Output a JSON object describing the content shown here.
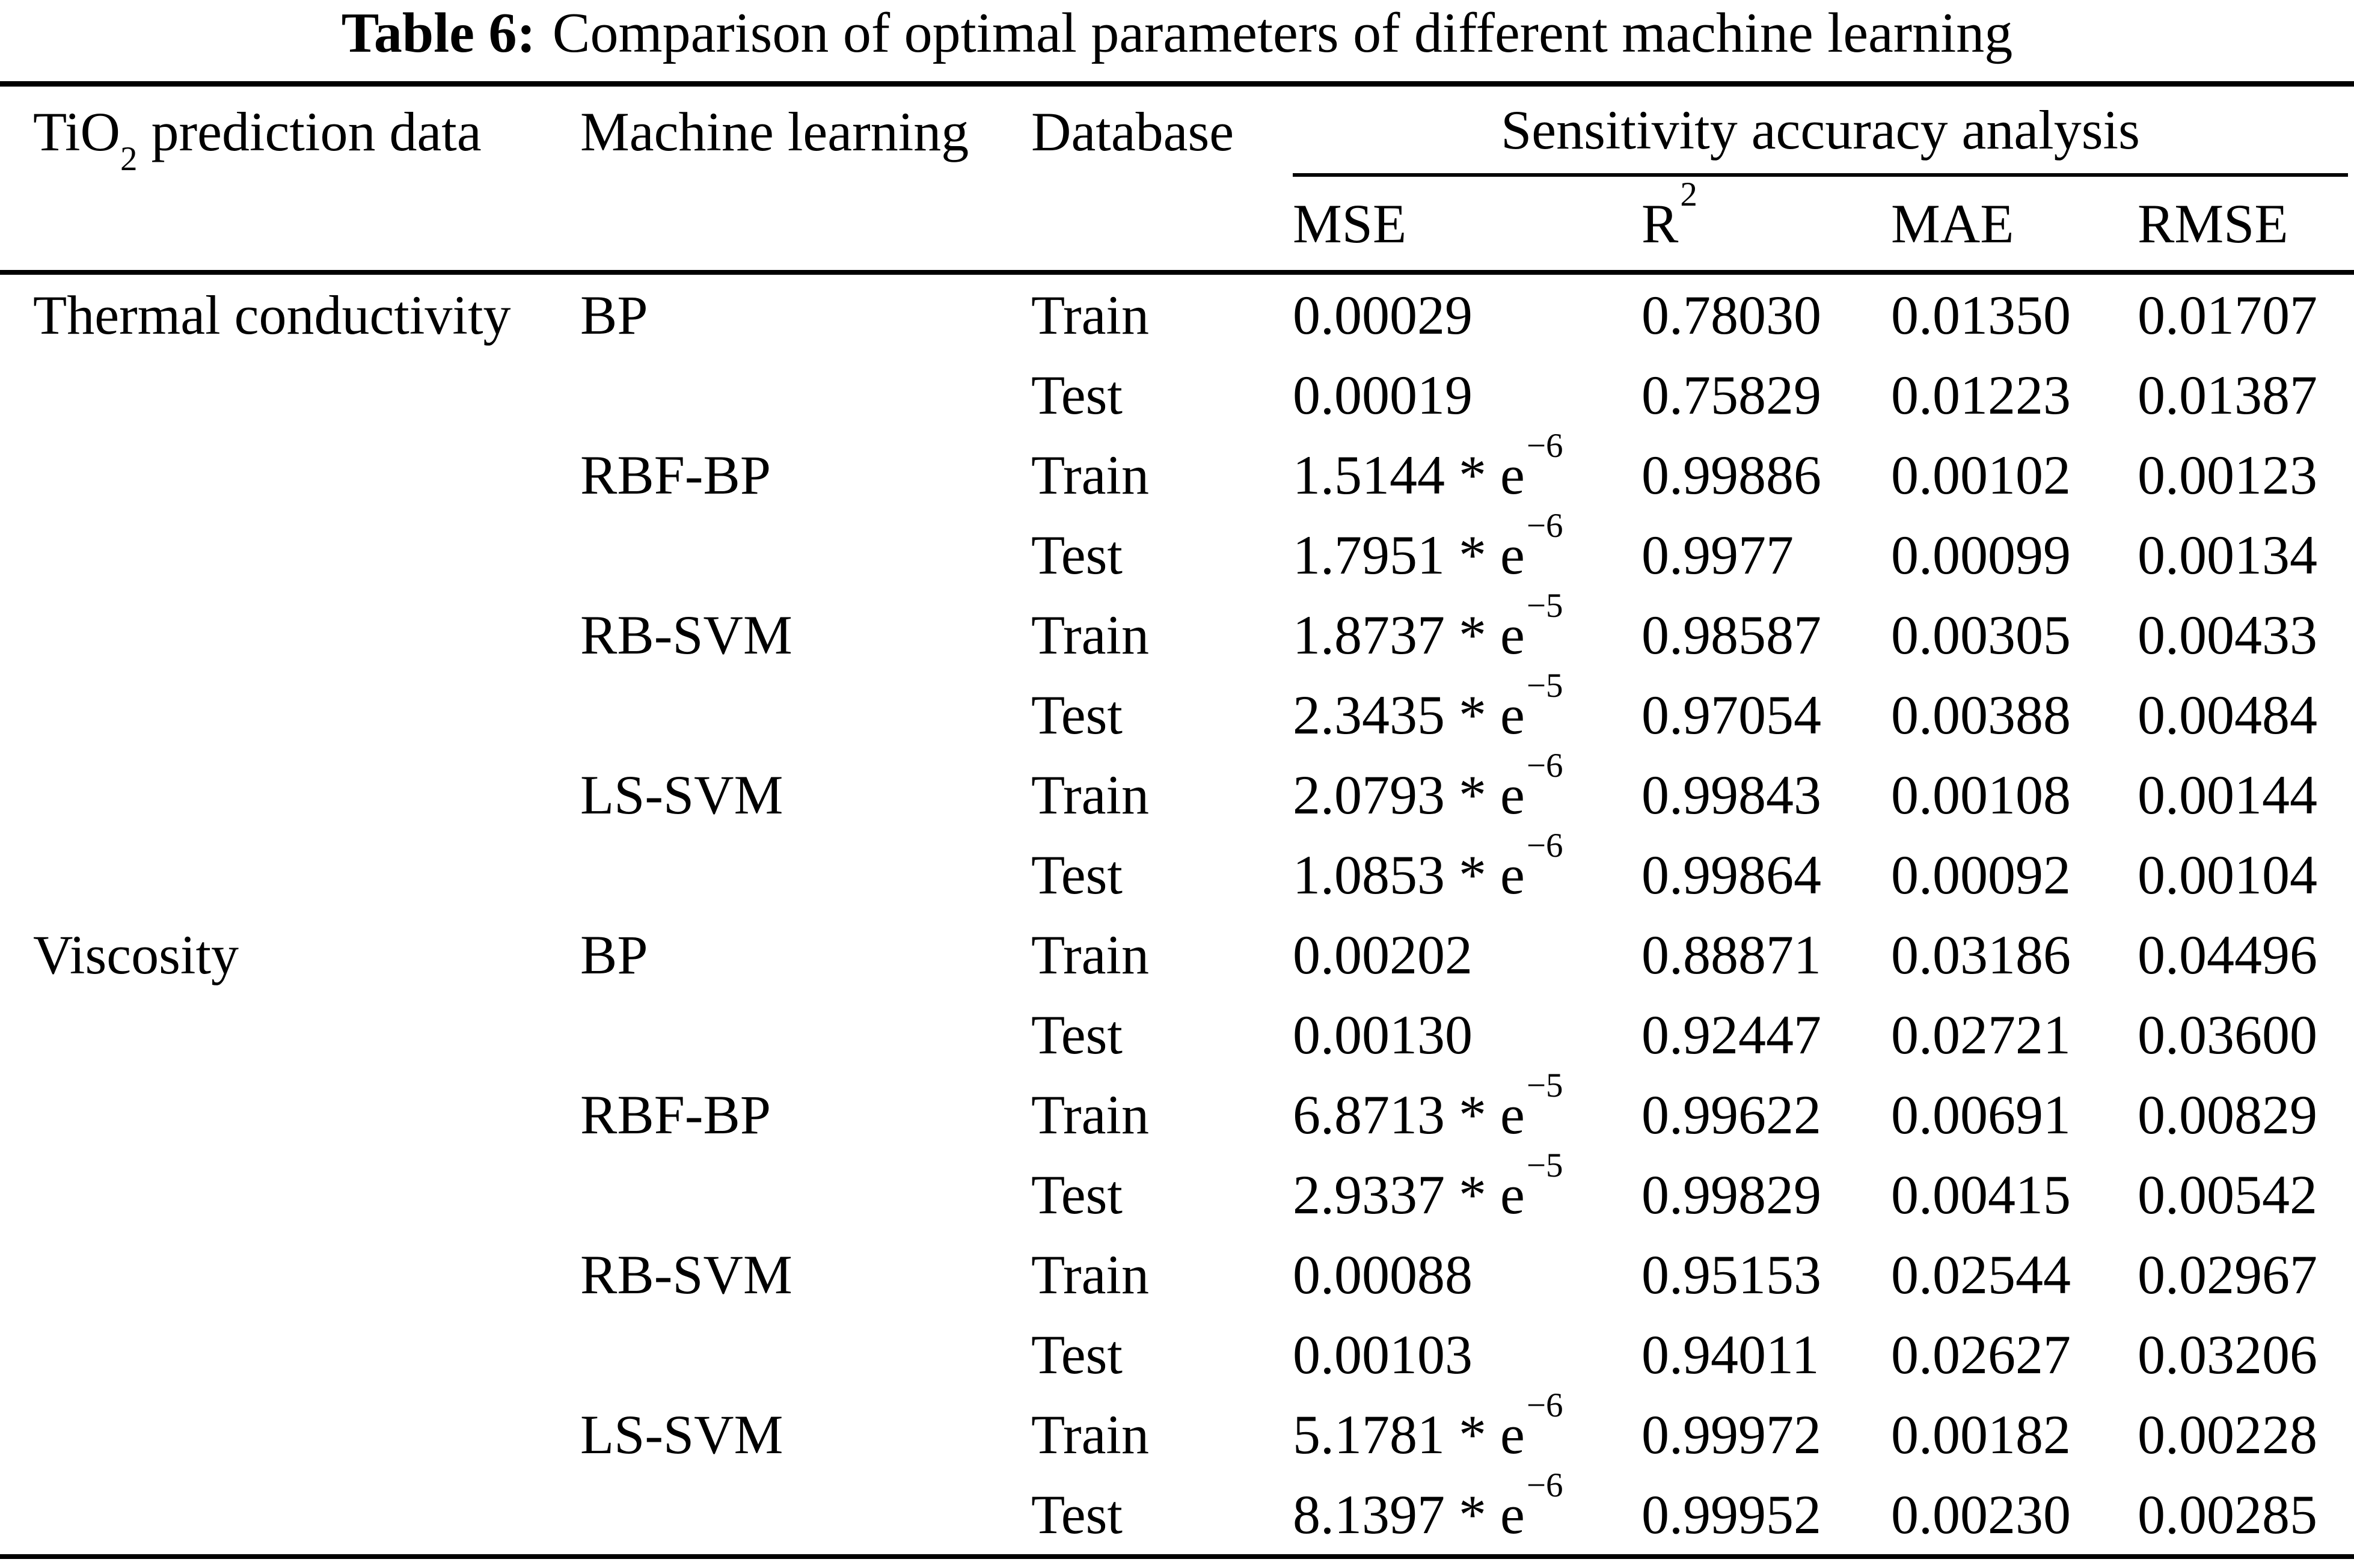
{
  "title": {
    "label": "Table 6:",
    "text": "Comparison of optimal parameters of different machine learning"
  },
  "header": {
    "col1_base": "TiO",
    "col1_sub": "2",
    "col1_rest": " prediction data",
    "col2": "Machine learning",
    "col3": "Database",
    "group": "Sensitivity accuracy analysis",
    "metrics": {
      "mse": "MSE",
      "r2_base": "R",
      "r2_sup": "2",
      "mae": "MAE",
      "rmse": "RMSE"
    }
  },
  "rows": [
    {
      "data": "Thermal conductivity",
      "model": "BP",
      "db": "Train",
      "mse": "0.00029",
      "mse_exp": "",
      "r2": "0.78030",
      "mae": "0.01350",
      "rmse": "0.01707"
    },
    {
      "data": "",
      "model": "",
      "db": "Test",
      "mse": "0.00019",
      "mse_exp": "",
      "r2": "0.75829",
      "mae": "0.01223",
      "rmse": "0.01387"
    },
    {
      "data": "",
      "model": "RBF-BP",
      "db": "Train",
      "mse": "1.5144 * e",
      "mse_exp": "−6",
      "r2": "0.99886",
      "mae": "0.00102",
      "rmse": "0.00123"
    },
    {
      "data": "",
      "model": "",
      "db": "Test",
      "mse": "1.7951 * e",
      "mse_exp": "−6",
      "r2": "0.9977",
      "mae": "0.00099",
      "rmse": "0.00134"
    },
    {
      "data": "",
      "model": "RB-SVM",
      "db": "Train",
      "mse": "1.8737 * e",
      "mse_exp": "−5",
      "r2": "0.98587",
      "mae": "0.00305",
      "rmse": "0.00433"
    },
    {
      "data": "",
      "model": "",
      "db": "Test",
      "mse": "2.3435 * e",
      "mse_exp": "−5",
      "r2": "0.97054",
      "mae": "0.00388",
      "rmse": "0.00484"
    },
    {
      "data": "",
      "model": "LS-SVM",
      "db": "Train",
      "mse": "2.0793 * e",
      "mse_exp": "−6",
      "r2": "0.99843",
      "mae": "0.00108",
      "rmse": "0.00144"
    },
    {
      "data": "",
      "model": "",
      "db": "Test",
      "mse": "1.0853 * e",
      "mse_exp": "−6",
      "r2": "0.99864",
      "mae": "0.00092",
      "rmse": "0.00104"
    },
    {
      "data": "Viscosity",
      "model": "BP",
      "db": "Train",
      "mse": "0.00202",
      "mse_exp": "",
      "r2": "0.88871",
      "mae": "0.03186",
      "rmse": "0.04496"
    },
    {
      "data": "",
      "model": "",
      "db": "Test",
      "mse": "0.00130",
      "mse_exp": "",
      "r2": "0.92447",
      "mae": "0.02721",
      "rmse": "0.03600"
    },
    {
      "data": "",
      "model": "RBF-BP",
      "db": "Train",
      "mse": "6.8713 * e",
      "mse_exp": "−5",
      "r2": "0.99622",
      "mae": "0.00691",
      "rmse": "0.00829"
    },
    {
      "data": "",
      "model": "",
      "db": "Test",
      "mse": "2.9337 * e",
      "mse_exp": "−5",
      "r2": "0.99829",
      "mae": "0.00415",
      "rmse": "0.00542"
    },
    {
      "data": "",
      "model": "RB-SVM",
      "db": "Train",
      "mse": "0.00088",
      "mse_exp": "",
      "r2": "0.95153",
      "mae": "0.02544",
      "rmse": "0.02967"
    },
    {
      "data": "",
      "model": "",
      "db": "Test",
      "mse": "0.00103",
      "mse_exp": "",
      "r2": "0.94011",
      "mae": "0.02627",
      "rmse": "0.03206"
    },
    {
      "data": "",
      "model": "LS-SVM",
      "db": "Train",
      "mse": "5.1781 * e",
      "mse_exp": "−6",
      "r2": "0.99972",
      "mae": "0.00182",
      "rmse": "0.00228"
    },
    {
      "data": "",
      "model": "",
      "db": "Test",
      "mse": "8.1397 * e",
      "mse_exp": "−6",
      "r2": "0.99952",
      "mae": "0.00230",
      "rmse": "0.00285"
    }
  ]
}
